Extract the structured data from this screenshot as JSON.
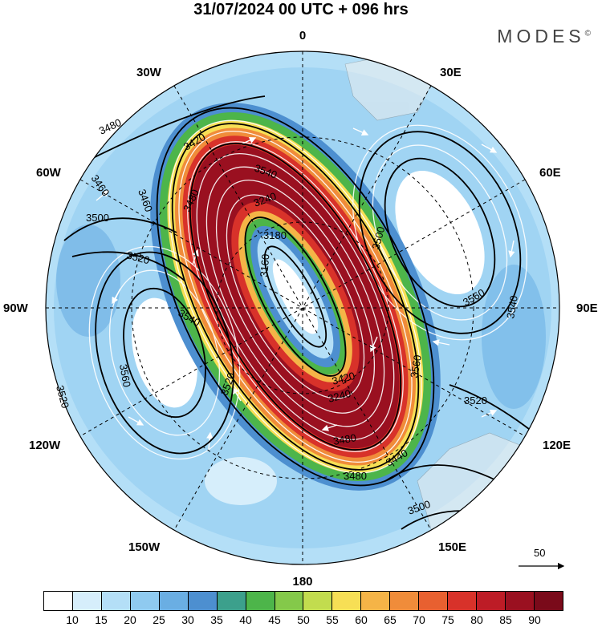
{
  "title": "31/07/2024  00 UTC  + 096 hrs",
  "brand": "MODES",
  "brand_mark": "©",
  "longitude_labels": {
    "top": "0",
    "bottom": "180",
    "left": "90W",
    "right": "90E",
    "upper_left": "30W",
    "upper_right": "30E",
    "mid_upper_left": "60W",
    "mid_upper_right": "60E",
    "lower_left": "120W",
    "lower_right": "120E",
    "bottom_left": "150W",
    "bottom_right": "150E"
  },
  "contour_labels": [
    "3480",
    "3460",
    "3420",
    "3540",
    "3240",
    "3180",
    "3160",
    "3500",
    "3520",
    "3560",
    "3540",
    "3520",
    "3480",
    "3420",
    "3240",
    "3480",
    "3500",
    "3560",
    "3540",
    "3520",
    "3520",
    "3560",
    "3480",
    "3500",
    "3460",
    "3440"
  ],
  "reference_vector": "50",
  "colorbar": {
    "ticks": [
      "10",
      "15",
      "20",
      "25",
      "30",
      "35",
      "40",
      "45",
      "50",
      "55",
      "60",
      "65",
      "70",
      "75",
      "80",
      "85",
      "90"
    ],
    "colors": [
      "#ffffff",
      "#d6eefb",
      "#b4dff7",
      "#8fcaf0",
      "#6aaee3",
      "#4d8fd0",
      "#3ca08c",
      "#4db54a",
      "#84c94a",
      "#c2dc4e",
      "#f7df55",
      "#f5b447",
      "#f08c3a",
      "#e86030",
      "#d8322a",
      "#bd1c26",
      "#9a1020",
      "#7a0a1a"
    ]
  }
}
